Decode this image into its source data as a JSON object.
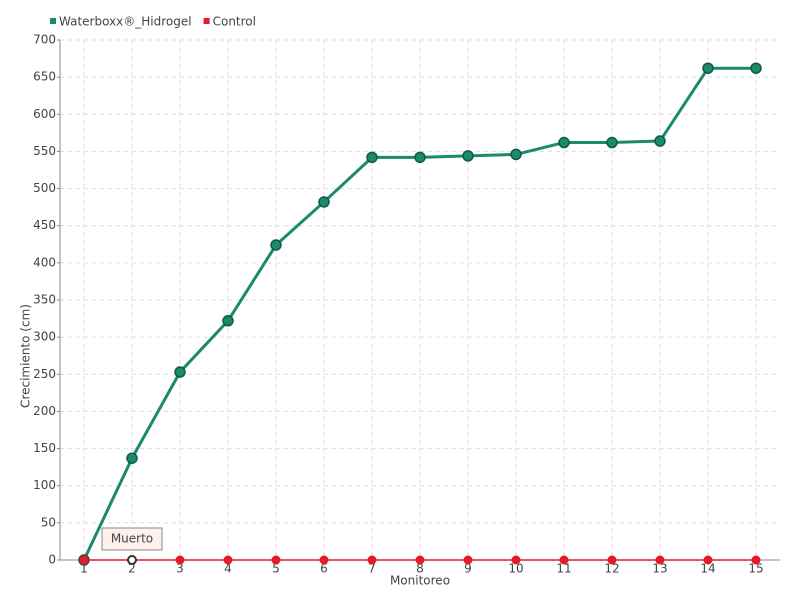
{
  "chart_data": {
    "type": "line",
    "x_label": "Monitoreo",
    "y_label": "Crecimiento (cm)",
    "categories": [
      "1",
      "2",
      "3",
      "4",
      "5",
      "6",
      "7",
      "8",
      "9",
      "10",
      "11",
      "12",
      "13",
      "14",
      "15"
    ],
    "series": [
      {
        "name": "Waterboxx®_Hidrogel",
        "color": "#1b8a6b",
        "values": [
          0,
          137,
          253,
          322,
          424,
          482,
          542,
          542,
          544,
          546,
          562,
          562,
          564,
          662,
          662
        ]
      },
      {
        "name": "Control",
        "color": "#e8192c",
        "values": [
          0,
          0,
          0,
          0,
          0,
          0,
          0,
          0,
          0,
          0,
          0,
          0,
          0,
          0,
          0
        ]
      }
    ],
    "annotations": [
      {
        "text": "Muerto",
        "x": "2"
      }
    ],
    "ylim": [
      0,
      700
    ],
    "yticks": [
      0,
      50,
      100,
      150,
      200,
      250,
      300,
      350,
      400,
      450,
      500,
      550,
      600,
      650,
      700
    ],
    "grid": true,
    "legend": "top-left"
  }
}
